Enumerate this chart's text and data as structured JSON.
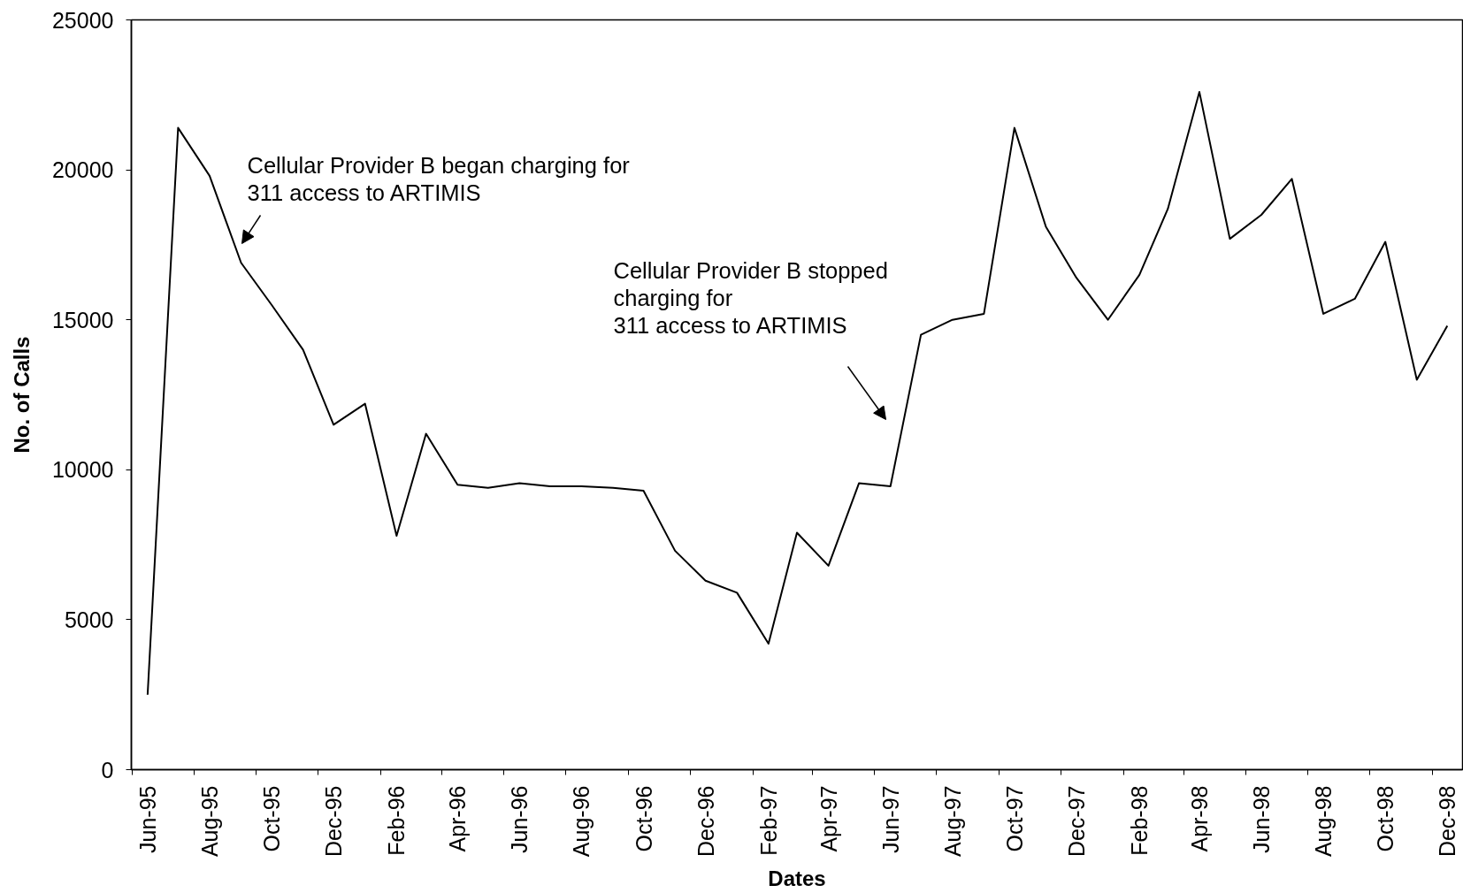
{
  "chart_data": {
    "type": "line",
    "xlabel": "Dates",
    "ylabel": "No. of Calls",
    "x": [
      "1995-06",
      "1995-07",
      "1995-08",
      "1995-09",
      "1995-10",
      "1995-11",
      "1995-12",
      "1996-01",
      "1996-02",
      "1996-03",
      "1996-04",
      "1996-05",
      "1996-06",
      "1996-07",
      "1996-08",
      "1996-09",
      "1996-10",
      "1996-11",
      "1996-12",
      "1997-01",
      "1997-02",
      "1997-03",
      "1997-04",
      "1997-05",
      "1997-06",
      "1997-07",
      "1997-08",
      "1997-09",
      "1997-10",
      "1997-11",
      "1997-12",
      "1998-01",
      "1998-02",
      "1998-03",
      "1998-04",
      "1998-05",
      "1998-06",
      "1998-07",
      "1998-08",
      "1998-09",
      "1998-10",
      "1998-11",
      "1998-12"
    ],
    "series": [
      {
        "color": "#000000",
        "values": [
          2500,
          21400,
          19800,
          16900,
          15500,
          14000,
          11500,
          12200,
          7800,
          11200,
          9500,
          9400,
          9550,
          9450,
          9450,
          9400,
          9300,
          7300,
          6300,
          5900,
          4200,
          7900,
          6800,
          9550,
          9450,
          14500,
          15000,
          15200,
          21400,
          18100,
          16400,
          15000,
          16500,
          18700,
          22600,
          17700,
          18500,
          19700,
          15200,
          15700,
          17600,
          13000,
          14800
        ]
      }
    ],
    "line_style": "solid",
    "xlim": [
      "1995-05-16",
      "1998-12-16"
    ],
    "xticks": [
      {
        "value": "1995-06",
        "label": "Jun-95"
      },
      {
        "value": "1995-08",
        "label": "Aug-95"
      },
      {
        "value": "1995-10",
        "label": "Oct-95"
      },
      {
        "value": "1995-12",
        "label": "Dec-95"
      },
      {
        "value": "1996-02",
        "label": "Feb-96"
      },
      {
        "value": "1996-04",
        "label": "Apr-96"
      },
      {
        "value": "1996-06",
        "label": "Jun-96"
      },
      {
        "value": "1996-08",
        "label": "Aug-96"
      },
      {
        "value": "1996-10",
        "label": "Oct-96"
      },
      {
        "value": "1996-12",
        "label": "Dec-96"
      },
      {
        "value": "1997-02",
        "label": "Feb-97"
      },
      {
        "value": "1997-04",
        "label": "Apr-97"
      },
      {
        "value": "1997-06",
        "label": "Jun-97"
      },
      {
        "value": "1997-08",
        "label": "Aug-97"
      },
      {
        "value": "1997-10",
        "label": "Oct-97"
      },
      {
        "value": "1997-12",
        "label": "Dec-97"
      },
      {
        "value": "1998-02",
        "label": "Feb-98"
      },
      {
        "value": "1998-04",
        "label": "Apr-98"
      },
      {
        "value": "1998-06",
        "label": "Jun-98"
      },
      {
        "value": "1998-08",
        "label": "Aug-98"
      },
      {
        "value": "1998-10",
        "label": "Oct-98"
      },
      {
        "value": "1998-12",
        "label": "Dec-98"
      }
    ],
    "ylim": [
      0,
      25000
    ],
    "yticks": [
      0,
      5000,
      10000,
      15000,
      20000,
      25000
    ],
    "annotations": [
      "Cellular Provider B began charging for\n311 access to ARTIMIS",
      "Cellular Provider B stopped\ncharging for\n311 access to ARTIMIS"
    ]
  }
}
